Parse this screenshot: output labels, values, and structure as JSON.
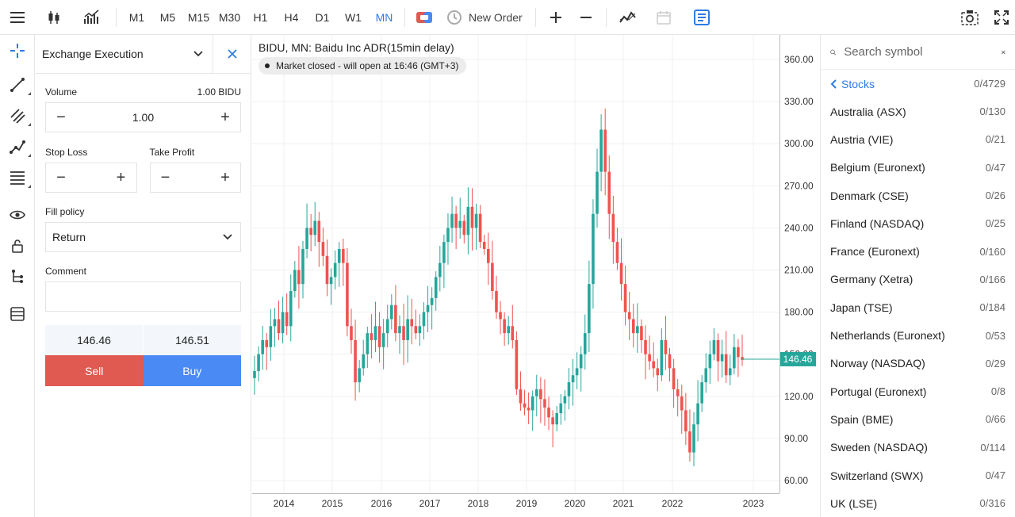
{
  "toolbar": {
    "timeframes": [
      "M1",
      "M5",
      "M15",
      "M30",
      "H1",
      "H4",
      "D1",
      "W1",
      "MN"
    ],
    "active_timeframe": "MN",
    "new_order_label": "New Order"
  },
  "order": {
    "title": "Exchange Execution",
    "volume_label": "Volume",
    "volume_unit": "1.00 BIDU",
    "volume_value": "1.00",
    "stop_loss_label": "Stop Loss",
    "take_profit_label": "Take Profit",
    "fill_policy_label": "Fill policy",
    "fill_policy_value": "Return",
    "comment_label": "Comment",
    "bid": "146.46",
    "ask": "146.51",
    "sell_label": "Sell",
    "buy_label": "Buy"
  },
  "chart": {
    "title": "BIDU, MN: Baidu Inc ADR(15min delay)",
    "market_status": "Market closed - will open at 16:46 (GMT+3)",
    "last_price_label": "146.46",
    "colors": {
      "up": "#26a69a",
      "down": "#ef5350",
      "price_line": "#26a69a"
    }
  },
  "chart_data": {
    "type": "candlestick",
    "y_ticks": [
      60,
      90,
      120,
      150,
      180,
      210,
      240,
      270,
      300,
      330,
      360
    ],
    "y_tick_labels": [
      "60.00",
      "90.00",
      "120.00",
      "150.00",
      "180.00",
      "210.00",
      "240.00",
      "270.00",
      "300.00",
      "330.00",
      "360.00"
    ],
    "x_tick_labels": [
      "2014",
      "2015",
      "2016",
      "2017",
      "2018",
      "2019",
      "2020",
      "2021",
      "2022",
      "2023"
    ],
    "last_price": 146.46,
    "closes": [
      138,
      150,
      160,
      155,
      170,
      175,
      165,
      180,
      170,
      195,
      210,
      200,
      225,
      240,
      235,
      245,
      230,
      220,
      200,
      205,
      215,
      225,
      215,
      170,
      160,
      130,
      140,
      150,
      165,
      160,
      170,
      155,
      165,
      175,
      185,
      165,
      170,
      160,
      175,
      170,
      165,
      170,
      180,
      185,
      190,
      205,
      215,
      230,
      240,
      250,
      240,
      245,
      235,
      255,
      240,
      250,
      230,
      225,
      215,
      195,
      180,
      175,
      165,
      170,
      160,
      125,
      115,
      112,
      110,
      120,
      125,
      118,
      112,
      105,
      100,
      108,
      115,
      120,
      130,
      135,
      140,
      150,
      165,
      200,
      250,
      280,
      310,
      280,
      250,
      230,
      215,
      200,
      180,
      175,
      165,
      170,
      160,
      150,
      145,
      140,
      135,
      160,
      150,
      140,
      125,
      120,
      110,
      95,
      80,
      100,
      115,
      130,
      140,
      150,
      160,
      145,
      150,
      135,
      140,
      155,
      148,
      146
    ]
  },
  "symbols": {
    "search_placeholder": "Search symbol",
    "category": "Stocks",
    "category_count": "0/4729",
    "items": [
      {
        "name": "Australia (ASX)",
        "count": "0/130"
      },
      {
        "name": "Austria (VIE)",
        "count": "0/21"
      },
      {
        "name": "Belgium (Euronext)",
        "count": "0/47"
      },
      {
        "name": "Denmark (CSE)",
        "count": "0/26"
      },
      {
        "name": "Finland (NASDAQ)",
        "count": "0/25"
      },
      {
        "name": "France (Euronext)",
        "count": "0/160"
      },
      {
        "name": "Germany (Xetra)",
        "count": "0/166"
      },
      {
        "name": "Japan (TSE)",
        "count": "0/184"
      },
      {
        "name": "Netherlands (Euronext)",
        "count": "0/53"
      },
      {
        "name": "Norway (NASDAQ)",
        "count": "0/29"
      },
      {
        "name": "Portugal (Euronext)",
        "count": "0/8"
      },
      {
        "name": "Spain (BME)",
        "count": "0/66"
      },
      {
        "name": "Sweden (NASDAQ)",
        "count": "0/114"
      },
      {
        "name": "Switzerland (SWX)",
        "count": "0/47"
      },
      {
        "name": "UK (LSE)",
        "count": "0/316"
      }
    ]
  }
}
